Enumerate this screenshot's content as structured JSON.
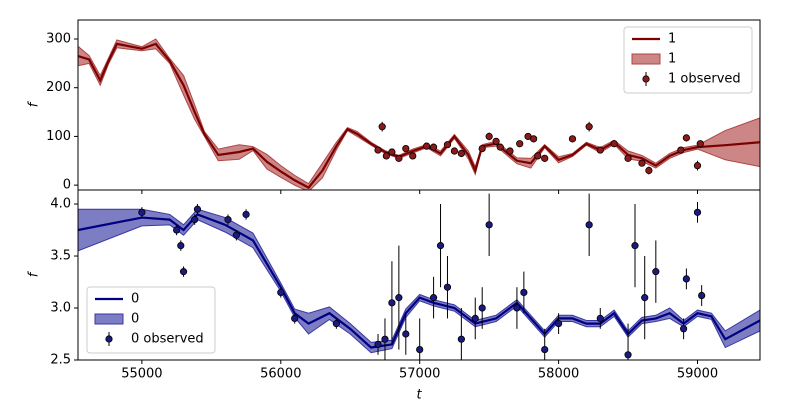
{
  "chart_data": [
    {
      "type": "line",
      "ylabel": "f",
      "ylim": [
        -10,
        339
      ],
      "yticks": [
        0,
        100,
        200,
        300
      ],
      "xlim": [
        54540,
        59450
      ],
      "legend": "upper right",
      "x": [
        54540,
        54620,
        54700,
        54760,
        54820,
        55000,
        55100,
        55200,
        55300,
        55380,
        55450,
        55550,
        55700,
        55800,
        55900,
        56000,
        56100,
        56200,
        56300,
        56400,
        56480,
        56550,
        56650,
        56750,
        56850,
        56950,
        57050,
        57150,
        57250,
        57350,
        57400,
        57450,
        57550,
        57700,
        57800,
        57900,
        58000,
        58100,
        58200,
        58300,
        58400,
        58500,
        58600,
        58700,
        58800,
        58900,
        59000,
        59200,
        59450
      ],
      "series": [
        {
          "name": "1",
          "kind": "line",
          "color": "#7b0000",
          "values": [
            265,
            258,
            215,
            255,
            290,
            280,
            290,
            255,
            205,
            150,
            105,
            62,
            68,
            75,
            48,
            28,
            10,
            -5,
            30,
            80,
            115,
            105,
            85,
            68,
            58,
            70,
            80,
            65,
            100,
            62,
            30,
            80,
            85,
            50,
            45,
            80,
            52,
            62,
            85,
            72,
            88,
            62,
            55,
            40,
            60,
            72,
            78,
            82,
            88
          ]
        },
        {
          "name": "1",
          "kind": "band",
          "color": "#b04545",
          "upper": [
            285,
            266,
            225,
            261,
            298,
            284,
            300,
            260,
            225,
            165,
            110,
            74,
            83,
            79,
            63,
            40,
            20,
            3,
            45,
            88,
            118,
            110,
            88,
            71,
            61,
            74,
            83,
            70,
            104,
            70,
            38,
            83,
            90,
            56,
            55,
            83,
            58,
            65,
            88,
            77,
            92,
            70,
            61,
            45,
            65,
            77,
            82,
            112,
            138
          ],
          "lower": [
            245,
            250,
            205,
            249,
            282,
            276,
            280,
            250,
            185,
            135,
            100,
            50,
            53,
            71,
            33,
            16,
            0,
            -13,
            15,
            72,
            112,
            100,
            82,
            65,
            55,
            66,
            77,
            60,
            96,
            54,
            22,
            77,
            80,
            44,
            35,
            77,
            46,
            59,
            82,
            67,
            84,
            54,
            49,
            35,
            55,
            67,
            74,
            52,
            38
          ]
        },
        {
          "name": "1 observed",
          "kind": "scatter",
          "color": "#8b1a1a",
          "x": [
            56700,
            56730,
            56760,
            56800,
            56850,
            56900,
            56950,
            57050,
            57100,
            57200,
            57250,
            57300,
            57450,
            57500,
            57550,
            57580,
            57650,
            57720,
            57780,
            57820,
            57850,
            57900,
            58100,
            58220,
            58300,
            58400,
            58500,
            58600,
            58650,
            58880,
            58920,
            59000,
            59020
          ],
          "values": [
            72,
            120,
            60,
            68,
            55,
            75,
            60,
            80,
            78,
            83,
            70,
            65,
            75,
            100,
            90,
            78,
            70,
            85,
            100,
            95,
            60,
            55,
            95,
            120,
            72,
            85,
            55,
            45,
            30,
            72,
            97,
            40,
            85
          ],
          "errors": [
            6,
            10,
            5,
            5,
            5,
            5,
            5,
            6,
            5,
            5,
            5,
            5,
            6,
            8,
            6,
            5,
            5,
            6,
            6,
            5,
            5,
            5,
            5,
            10,
            5,
            5,
            5,
            5,
            8,
            5,
            5,
            10,
            6
          ]
        }
      ]
    },
    {
      "type": "line",
      "ylabel": "f",
      "xlabel": "t",
      "ylim": [
        2.5,
        4.135
      ],
      "yticks": [
        {
          "value": 2.5,
          "label": "2.5"
        },
        {
          "value": 3,
          "label": "3.0"
        },
        {
          "value": 3.5,
          "label": "3.5"
        },
        {
          "value": 4,
          "label": "4.0"
        }
      ],
      "xlim": [
        54540,
        59450
      ],
      "xticks": [
        55000,
        56000,
        57000,
        58000,
        59000
      ],
      "legend": "lower left",
      "x": [
        54540,
        55000,
        55200,
        55300,
        55400,
        55600,
        55800,
        56000,
        56100,
        56200,
        56350,
        56500,
        56650,
        56800,
        56900,
        57000,
        57100,
        57250,
        57400,
        57550,
        57700,
        57800,
        57900,
        58000,
        58100,
        58200,
        58300,
        58400,
        58500,
        58600,
        58700,
        58800,
        58900,
        59000,
        59100,
        59200,
        59450
      ],
      "series": [
        {
          "name": "0",
          "kind": "line",
          "color": "#000080",
          "values": [
            3.75,
            3.87,
            3.85,
            3.75,
            3.9,
            3.8,
            3.65,
            3.2,
            2.95,
            2.85,
            2.95,
            2.8,
            2.62,
            2.65,
            2.95,
            3.1,
            3.05,
            3.0,
            2.85,
            2.9,
            3.05,
            2.9,
            2.75,
            2.9,
            2.9,
            2.85,
            2.85,
            2.95,
            2.75,
            2.88,
            2.9,
            2.95,
            2.85,
            2.95,
            2.92,
            2.7,
            2.88
          ]
        },
        {
          "name": "0",
          "kind": "band",
          "color": "#3838a5",
          "upper": [
            3.95,
            3.95,
            3.9,
            3.8,
            3.95,
            3.87,
            3.72,
            3.24,
            2.99,
            2.95,
            3.01,
            2.85,
            2.67,
            2.69,
            2.99,
            3.13,
            3.08,
            3.03,
            2.88,
            2.93,
            3.08,
            2.93,
            2.78,
            2.93,
            2.93,
            2.88,
            2.88,
            2.98,
            2.78,
            2.91,
            2.93,
            3.0,
            2.88,
            2.98,
            2.95,
            2.78,
            2.98
          ],
          "lower": [
            3.55,
            3.79,
            3.8,
            3.7,
            3.85,
            3.73,
            3.58,
            3.16,
            2.91,
            2.75,
            2.89,
            2.75,
            2.57,
            2.61,
            2.91,
            3.07,
            3.02,
            2.97,
            2.82,
            2.87,
            3.02,
            2.87,
            2.72,
            2.87,
            2.87,
            2.82,
            2.82,
            2.92,
            2.72,
            2.85,
            2.87,
            2.9,
            2.82,
            2.92,
            2.89,
            2.62,
            2.78
          ]
        },
        {
          "name": "0 observed",
          "kind": "scatter",
          "color": "#1a1a80",
          "x": [
            55000,
            55250,
            55280,
            55300,
            55380,
            55400,
            55620,
            55680,
            55750,
            56000,
            56100,
            56400,
            56700,
            56750,
            56800,
            56850,
            56900,
            57000,
            57100,
            57150,
            57200,
            57300,
            57400,
            57450,
            57500,
            57700,
            57750,
            57900,
            58000,
            58220,
            58300,
            58500,
            58550,
            58620,
            58700,
            58900,
            58920,
            59000,
            59030
          ],
          "values": [
            3.92,
            3.75,
            3.6,
            3.35,
            3.85,
            3.95,
            3.85,
            3.7,
            3.9,
            3.15,
            2.9,
            2.85,
            2.65,
            2.7,
            3.05,
            3.1,
            2.75,
            2.6,
            3.1,
            3.6,
            3.2,
            2.7,
            2.9,
            3.0,
            3.8,
            3.0,
            3.15,
            2.6,
            2.85,
            3.8,
            2.9,
            2.55,
            3.6,
            3.1,
            3.35,
            2.8,
            3.28,
            3.92,
            3.12
          ],
          "errors": [
            0.05,
            0.05,
            0.05,
            0.05,
            0.05,
            0.05,
            0.05,
            0.05,
            0.05,
            0.05,
            0.05,
            0.05,
            0.1,
            0.2,
            0.4,
            0.5,
            0.2,
            0.3,
            0.2,
            0.4,
            0.3,
            0.3,
            0.2,
            0.2,
            0.3,
            0.2,
            0.2,
            0.2,
            0.1,
            0.3,
            0.1,
            0.3,
            0.4,
            0.4,
            0.3,
            0.1,
            0.1,
            0.1,
            0.1
          ]
        }
      ]
    }
  ]
}
